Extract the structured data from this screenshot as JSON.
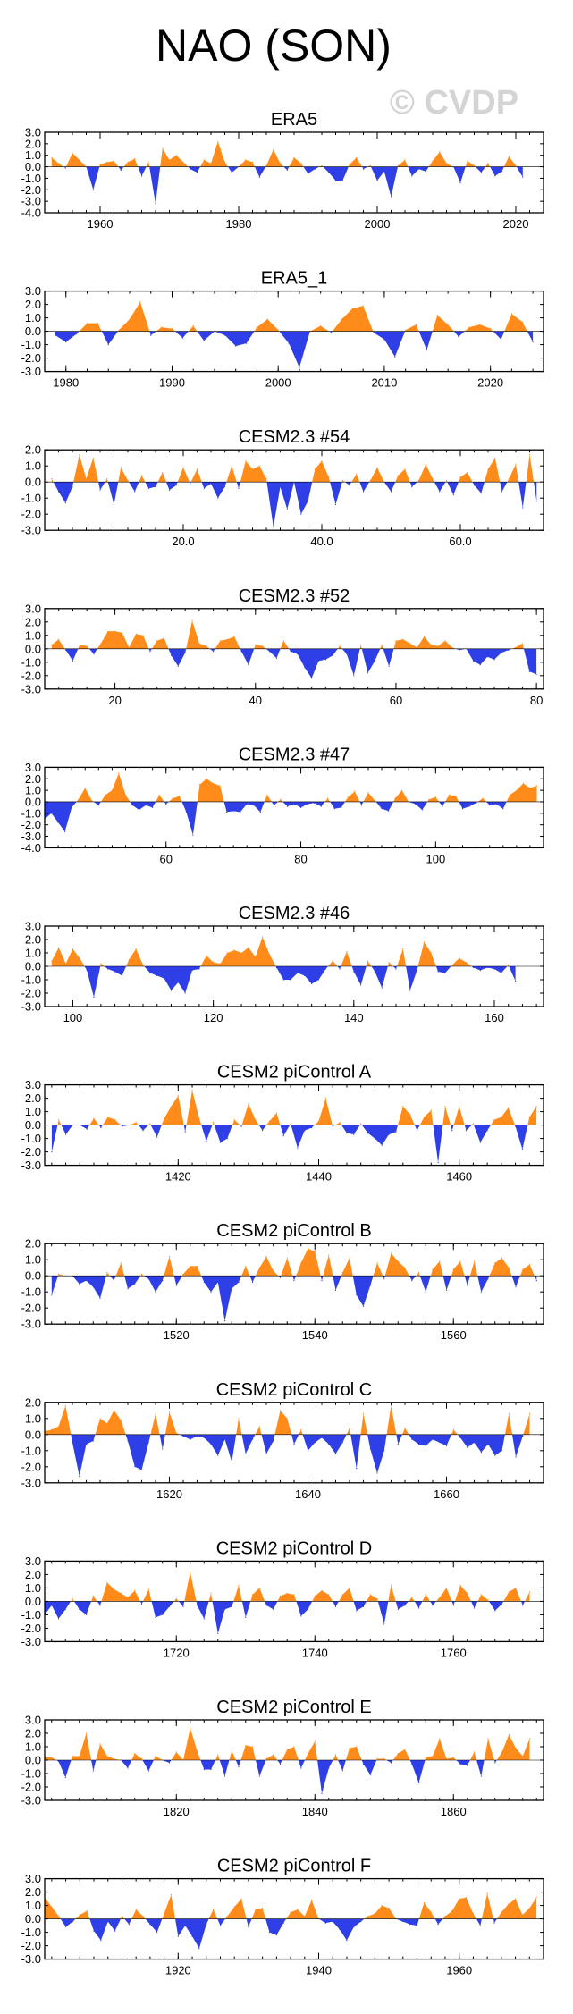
{
  "figure": {
    "title": "NAO (SON)",
    "watermark": "© CVDP"
  },
  "colors": {
    "positive": "#ff8c1a",
    "negative": "#2f3fe8"
  },
  "chart_data": [
    {
      "type": "area",
      "title": "ERA5",
      "xlim": [
        1952,
        2024
      ],
      "ylim": [
        -4.0,
        3.0
      ],
      "yticks": [
        3.0,
        2.0,
        1.0,
        0.0,
        -1.0,
        -2.0,
        -3.0,
        -4.0
      ],
      "ytick_labels": [
        "3.0",
        "2.0",
        "1.0",
        "0.0",
        "-1.0",
        "-2.0",
        "-3.0",
        "-4.0"
      ],
      "xticks": [
        1960,
        1980,
        2000,
        2020
      ],
      "xtick_labels": [
        "1960",
        "1980",
        "2000",
        "2020"
      ],
      "x_start": 1953,
      "values": [
        0.8,
        0.3,
        -0.1,
        1.2,
        0.6,
        0.0,
        -2.0,
        0.2,
        0.4,
        0.5,
        -0.3,
        0.4,
        0.7,
        -0.8,
        0.4,
        -3.2,
        1.6,
        0.6,
        1.0,
        0.4,
        -0.2,
        -0.5,
        0.6,
        0.3,
        2.2,
        0.4,
        -0.5,
        0.0,
        0.6,
        0.4,
        -0.9,
        0.1,
        1.5,
        0.3,
        -0.3,
        0.8,
        0.3,
        -0.6,
        -0.2,
        0.1,
        -0.5,
        -1.2,
        -1.2,
        0.2,
        0.8,
        -0.2,
        0.1,
        -1.2,
        -0.4,
        -2.6,
        0.1,
        0.6,
        -0.8,
        -0.2,
        -0.4,
        0.5,
        1.3,
        0.3,
        0.0,
        -1.4,
        0.5,
        0.1,
        -0.5,
        0.3,
        -0.8,
        -0.4,
        0.9,
        0.1,
        -0.9
      ]
    },
    {
      "type": "area",
      "title": "ERA5_1",
      "xlim": [
        1978,
        2025
      ],
      "ylim": [
        -3.0,
        3.0
      ],
      "yticks": [
        3.0,
        2.0,
        1.0,
        0.0,
        -1.0,
        -2.0,
        -3.0
      ],
      "ytick_labels": [
        "3.0",
        "2.0",
        "1.0",
        "0.0",
        "-1.0",
        "-2.0",
        "-3.0"
      ],
      "xticks": [
        1980,
        1990,
        2000,
        2010,
        2020
      ],
      "xtick_labels": [
        "1980",
        "1990",
        "2000",
        "2010",
        "2020"
      ],
      "x_start": 1979,
      "values": [
        -0.3,
        -0.8,
        -0.2,
        0.6,
        0.6,
        -1.0,
        0.1,
        0.9,
        2.2,
        -0.3,
        0.3,
        0.2,
        -0.5,
        0.4,
        -0.7,
        0.0,
        -0.3,
        -1.1,
        -0.9,
        0.3,
        0.9,
        0.1,
        -0.9,
        -2.7,
        0.0,
        0.4,
        -0.1,
        0.9,
        1.7,
        1.9,
        -0.1,
        -0.6,
        -1.9,
        0.1,
        0.5,
        -1.4,
        1.2,
        0.5,
        -0.4,
        0.3,
        0.5,
        0.2,
        -0.6,
        1.3,
        0.7,
        -0.8
      ]
    },
    {
      "type": "area",
      "title": "CESM2.3 #54",
      "xlim": [
        0,
        72
      ],
      "ylim": [
        -3.0,
        2.0
      ],
      "yticks": [
        2.0,
        1.0,
        0.0,
        -1.0,
        -2.0,
        -3.0
      ],
      "ytick_labels": [
        "2.0",
        "1.0",
        "0.0",
        "-1.0",
        "-2.0",
        "-3.0"
      ],
      "xticks": [
        20,
        40,
        60
      ],
      "xtick_labels": [
        "20.0",
        "40.0",
        "60.0"
      ],
      "x_start": 1,
      "values": [
        0.2,
        -0.6,
        -1.3,
        -0.3,
        1.7,
        0.2,
        1.5,
        -0.5,
        0.2,
        -1.4,
        0.9,
        0.1,
        -0.6,
        0.4,
        -0.4,
        -0.3,
        0.6,
        -0.5,
        -0.2,
        0.9,
        -0.1,
        0.8,
        -0.4,
        -0.1,
        -1.0,
        -0.3,
        1.0,
        -0.4,
        1.3,
        0.8,
        1.0,
        0.2,
        -2.8,
        -0.3,
        -1.7,
        0.0,
        -2.0,
        -1.2,
        0.8,
        1.3,
        0.3,
        -1.4,
        0.1,
        -0.2,
        0.5,
        -0.6,
        0.1,
        0.9,
        0.0,
        -0.6,
        0.4,
        0.8,
        -0.3,
        0.1,
        1.1,
        0.2,
        -0.6,
        0.1,
        -0.8,
        0.3,
        0.6,
        -0.2,
        -0.7,
        0.8,
        1.5,
        -0.6,
        0.2,
        1.1,
        -1.6,
        1.7,
        -1.2
      ]
    },
    {
      "type": "area",
      "title": "CESM2.3 #52",
      "xlim": [
        10,
        81
      ],
      "ylim": [
        -3.0,
        3.0
      ],
      "yticks": [
        3.0,
        2.0,
        1.0,
        0.0,
        -1.0,
        -2.0,
        -3.0
      ],
      "ytick_labels": [
        "3.0",
        "2.0",
        "1.0",
        "0.0",
        "-1.0",
        "-2.0",
        "-3.0"
      ],
      "xticks": [
        20,
        40,
        60,
        80
      ],
      "xtick_labels": [
        "20",
        "40",
        "60",
        "80"
      ],
      "x_start": 11,
      "values": [
        0.3,
        0.7,
        -0.1,
        -0.9,
        0.3,
        0.2,
        -0.4,
        0.4,
        1.3,
        1.3,
        1.2,
        0.1,
        1.1,
        1.0,
        -0.2,
        0.6,
        0.8,
        -0.5,
        -1.3,
        -0.3,
        2.1,
        0.4,
        0.2,
        -0.2,
        0.6,
        0.7,
        0.9,
        -0.2,
        -1.2,
        0.3,
        0.2,
        -0.2,
        -0.7,
        0.6,
        -0.2,
        -0.4,
        -1.4,
        -2.2,
        -0.9,
        -0.8,
        -0.5,
        0.2,
        -0.4,
        -2.0,
        0.3,
        -1.8,
        -0.9,
        0.3,
        -1.3,
        0.6,
        0.7,
        0.4,
        0.1,
        0.9,
        0.3,
        0.2,
        0.6,
        0.1,
        -0.1,
        0.0,
        -0.9,
        -1.2,
        -0.6,
        -0.8,
        -0.3,
        -0.1,
        0.1,
        0.4,
        -1.7,
        -1.9
      ]
    },
    {
      "type": "area",
      "title": "CESM2.3 #47",
      "xlim": [
        42,
        116
      ],
      "ylim": [
        -4.0,
        3.0
      ],
      "yticks": [
        3.0,
        2.0,
        1.0,
        0.0,
        -1.0,
        -2.0,
        -3.0,
        -4.0
      ],
      "ytick_labels": [
        "3.0",
        "2.0",
        "1.0",
        "0.0",
        "-1.0",
        "-2.0",
        "-3.0",
        "-4.0"
      ],
      "xticks": [
        60,
        80,
        100
      ],
      "xtick_labels": [
        "60",
        "80",
        "100"
      ],
      "x_start": 42,
      "values": [
        -1.5,
        -1.0,
        -1.8,
        -2.6,
        -0.5,
        0.2,
        1.2,
        0.1,
        -0.3,
        0.6,
        1.0,
        2.5,
        0.6,
        -0.3,
        -0.7,
        -0.3,
        -0.5,
        0.6,
        -0.2,
        0.3,
        0.5,
        -0.9,
        -2.9,
        1.5,
        2.0,
        1.6,
        1.4,
        -0.9,
        -0.8,
        -0.9,
        -0.2,
        -0.3,
        -0.9,
        0.6,
        -0.3,
        0.2,
        -0.4,
        -0.2,
        -0.5,
        -0.2,
        -0.1,
        -0.4,
        0.3,
        -0.6,
        -0.5,
        0.4,
        0.9,
        -0.3,
        0.8,
        0.1,
        -0.6,
        -0.8,
        0.3,
        1.0,
        0.0,
        -0.2,
        -0.7,
        0.2,
        0.4,
        -0.4,
        0.6,
        0.5,
        -0.6,
        -0.4,
        -0.1,
        0.3,
        -0.3,
        -0.2,
        -0.6,
        0.6,
        1.0,
        1.6,
        1.2,
        1.4
      ]
    },
    {
      "type": "area",
      "title": "CESM2.3 #46",
      "xlim": [
        96,
        167
      ],
      "ylim": [
        -3.0,
        3.0
      ],
      "yticks": [
        3.0,
        2.0,
        1.0,
        0.0,
        -1.0,
        -2.0,
        -3.0
      ],
      "ytick_labels": [
        "3.0",
        "2.0",
        "1.0",
        "0.0",
        "-1.0",
        "-2.0",
        "-3.0"
      ],
      "xticks": [
        100,
        120,
        140,
        160
      ],
      "xtick_labels": [
        "100",
        "120",
        "140",
        "160"
      ],
      "x_start": 97,
      "values": [
        0.4,
        1.4,
        0.2,
        1.3,
        0.6,
        -0.3,
        -2.3,
        0.2,
        -0.2,
        -0.4,
        -0.7,
        0.5,
        1.3,
        0.1,
        -0.5,
        -0.7,
        -0.9,
        -1.8,
        -1.2,
        -2.0,
        -0.3,
        -0.2,
        0.8,
        0.3,
        0.2,
        1.0,
        1.2,
        1.0,
        1.4,
        0.7,
        2.2,
        0.9,
        -0.1,
        -1.0,
        -1.0,
        -0.5,
        -0.7,
        -1.3,
        -1.0,
        -0.2,
        0.4,
        -0.2,
        1.1,
        -0.4,
        -1.4,
        0.4,
        -0.4,
        -1.6,
        0.3,
        -0.2,
        1.3,
        -1.8,
        -0.3,
        1.8,
        1.0,
        -0.4,
        -0.5,
        0.1,
        0.6,
        0.3,
        -0.1,
        -0.3,
        -0.1,
        -0.2,
        -0.5,
        0.1,
        -1.1
      ]
    },
    {
      "type": "area",
      "title": "CESM2 piControl A",
      "xlim": [
        1401,
        1472
      ],
      "ylim": [
        -3.0,
        3.0
      ],
      "yticks": [
        3.0,
        2.0,
        1.0,
        0.0,
        -1.0,
        -2.0,
        -3.0
      ],
      "ytick_labels": [
        "3.0",
        "2.0",
        "1.0",
        "0.0",
        "-1.0",
        "-2.0",
        "-3.0"
      ],
      "xticks": [
        1420,
        1440,
        1460
      ],
      "xtick_labels": [
        "1420",
        "1440",
        "1460"
      ],
      "x_start": 1402,
      "values": [
        -2.0,
        0.4,
        -0.7,
        0.0,
        0.0,
        -0.3,
        0.5,
        -0.2,
        0.6,
        0.4,
        -0.1,
        0.0,
        0.2,
        -0.4,
        0.1,
        -0.9,
        0.5,
        1.4,
        2.2,
        -0.5,
        2.6,
        0.5,
        -1.2,
        0.2,
        -1.3,
        -1.0,
        0.4,
        -0.1,
        1.6,
        0.4,
        -0.4,
        0.3,
        0.9,
        -0.8,
        0.1,
        -1.7,
        -0.4,
        -0.2,
        0.3,
        2.0,
        -0.1,
        0.2,
        -0.6,
        -0.7,
        0.1,
        -0.6,
        -1.0,
        -1.5,
        -0.7,
        -0.5,
        1.4,
        0.8,
        -0.4,
        0.6,
        1.1,
        -2.8,
        1.4,
        -0.4,
        1.4,
        -0.4,
        0.1,
        -1.3,
        -0.4,
        0.4,
        0.6,
        1.3,
        -0.1,
        -1.8,
        0.6,
        1.4
      ]
    },
    {
      "type": "area",
      "title": "CESM2 piControl B",
      "xlim": [
        1501,
        1573
      ],
      "ylim": [
        -3.0,
        2.0
      ],
      "yticks": [
        2.0,
        1.0,
        0.0,
        -1.0,
        -2.0,
        -3.0
      ],
      "ytick_labels": [
        "2.0",
        "1.0",
        "0.0",
        "-1.0",
        "-2.0",
        "-3.0"
      ],
      "xticks": [
        1520,
        1540,
        1560
      ],
      "xtick_labels": [
        "1520",
        "1540",
        "1560"
      ],
      "x_start": 1502,
      "values": [
        -1.2,
        0.1,
        0.0,
        0.0,
        -0.5,
        -0.3,
        -0.7,
        -1.4,
        0.2,
        -0.3,
        0.8,
        -0.8,
        -0.5,
        0.1,
        -0.2,
        -1.0,
        -0.3,
        1.2,
        -0.6,
        0.1,
        0.6,
        0.6,
        -0.4,
        -1.0,
        -0.4,
        -2.8,
        -0.8,
        -0.4,
        0.6,
        -0.4,
        0.5,
        1.2,
        0.3,
        -0.1,
        1.1,
        -0.3,
        0.8,
        1.7,
        1.5,
        -0.3,
        1.3,
        -0.9,
        0.2,
        1.1,
        -1.2,
        -1.9,
        -0.6,
        0.8,
        -0.2,
        1.4,
        0.9,
        0.5,
        -0.3,
        0.2,
        -1.0,
        0.4,
        0.9,
        -0.9,
        0.4,
        0.9,
        -0.6,
        0.9,
        -1.0,
        -0.2,
        0.8,
        1.1,
        0.5,
        -0.7,
        0.4,
        0.7,
        -0.3
      ]
    },
    {
      "type": "area",
      "title": "CESM2 piControl C",
      "xlim": [
        1602,
        1674
      ],
      "ylim": [
        -3.0,
        2.0
      ],
      "yticks": [
        2.0,
        1.0,
        0.0,
        -1.0,
        -2.0,
        -3.0
      ],
      "ytick_labels": [
        "2.0",
        "1.0",
        "0.0",
        "-1.0",
        "-2.0",
        "-3.0"
      ],
      "xticks": [
        1620,
        1640,
        1660
      ],
      "xtick_labels": [
        "1620",
        "1640",
        "1660"
      ],
      "x_start": 1602,
      "values": [
        0.2,
        0.3,
        0.5,
        1.8,
        -0.5,
        -2.6,
        -0.6,
        -0.4,
        1.0,
        0.7,
        1.5,
        0.9,
        -0.4,
        -2.0,
        -2.2,
        -0.5,
        1.3,
        -0.9,
        1.4,
        0.1,
        -0.1,
        -0.3,
        -0.1,
        -0.2,
        -0.6,
        -1.3,
        -0.3,
        -1.7,
        1.0,
        -1.2,
        -0.3,
        0.5,
        -1.2,
        -0.4,
        1.5,
        1.0,
        -0.6,
        0.3,
        -1.0,
        -0.5,
        -0.2,
        -0.6,
        -1.2,
        -0.5,
        0.4,
        -2.1,
        1.3,
        -0.9,
        -2.4,
        -1.0,
        1.8,
        -0.6,
        0.4,
        -0.3,
        -0.6,
        -0.7,
        -0.3,
        -0.5,
        -0.7,
        0.3,
        -0.2,
        -0.8,
        -0.5,
        -1.1,
        -0.6,
        -1.3,
        -1.0,
        1.3,
        -1.4,
        -0.1,
        1.3
      ]
    },
    {
      "type": "area",
      "title": "CESM2 piControl D",
      "xlim": [
        1701,
        1773
      ],
      "ylim": [
        -3.0,
        3.0
      ],
      "yticks": [
        3.0,
        2.0,
        1.0,
        0.0,
        -1.0,
        -2.0,
        -3.0
      ],
      "ytick_labels": [
        "3.0",
        "2.0",
        "1.0",
        "0.0",
        "-1.0",
        "-2.0",
        "-3.0"
      ],
      "xticks": [
        1720,
        1740,
        1760
      ],
      "xtick_labels": [
        "1720",
        "1740",
        "1760"
      ],
      "x_start": 1701,
      "values": [
        -1.0,
        -0.3,
        -1.3,
        -0.6,
        0.2,
        -0.6,
        -1.0,
        0.4,
        -0.3,
        1.4,
        0.9,
        0.6,
        0.3,
        0.8,
        -0.2,
        0.9,
        -1.2,
        -1.0,
        -0.4,
        0.2,
        -0.4,
        2.2,
        -0.3,
        -1.3,
        0.6,
        -2.4,
        -0.6,
        -0.4,
        1.2,
        -1.2,
        0.5,
        1.0,
        -0.3,
        -0.6,
        0.4,
        0.6,
        0.5,
        -1.1,
        -0.6,
        0.4,
        0.8,
        0.5,
        -0.4,
        0.5,
        1.0,
        -0.7,
        -0.4,
        0.5,
        0.2,
        -1.7,
        1.2,
        -0.6,
        -0.3,
        0.3,
        -0.5,
        0.5,
        -0.3,
        0.3,
        1.0,
        -0.3,
        1.2,
        0.6,
        -0.5,
        0.5,
        0.1,
        -0.7,
        -0.2,
        0.7,
        1.0,
        -0.3,
        0.7
      ]
    },
    {
      "type": "area",
      "title": "CESM2 piControl E",
      "xlim": [
        1801,
        1873
      ],
      "ylim": [
        -3.0,
        3.0
      ],
      "yticks": [
        3.0,
        2.0,
        1.0,
        0.0,
        -1.0,
        -2.0,
        -3.0
      ],
      "ytick_labels": [
        "3.0",
        "2.0",
        "1.0",
        "0.0",
        "-1.0",
        "-2.0",
        "-3.0"
      ],
      "xticks": [
        1820,
        1840,
        1860
      ],
      "xtick_labels": [
        "1820",
        "1840",
        "1860"
      ],
      "x_start": 1801,
      "values": [
        0.2,
        0.2,
        -0.1,
        -1.3,
        0.3,
        0.3,
        2.0,
        -0.8,
        1.2,
        0.3,
        0.1,
        0.0,
        -0.6,
        0.5,
        0.1,
        -0.8,
        0.3,
        0.0,
        -0.2,
        0.6,
        0.0,
        2.4,
        0.7,
        -0.7,
        -0.7,
        0.4,
        -1.2,
        0.7,
        -0.5,
        1.1,
        1.0,
        -1.2,
        0.1,
        0.4,
        -0.3,
        0.8,
        1.0,
        -0.6,
        0.5,
        1.4,
        -2.5,
        -0.6,
        0.4,
        -0.8,
        0.9,
        1.0,
        -0.3,
        -1.1,
        0.1,
        0.1,
        -0.2,
        0.5,
        0.8,
        -0.3,
        -1.7,
        0.2,
        0.3,
        1.6,
        0.1,
        0.2,
        -0.3,
        -0.4,
        0.6,
        -1.2,
        1.6,
        -0.2,
        0.6,
        1.9,
        0.9,
        0.3,
        1.6
      ]
    },
    {
      "type": "area",
      "title": "CESM2 piControl F",
      "xlim": [
        1901,
        1972
      ],
      "ylim": [
        -3.0,
        3.0
      ],
      "yticks": [
        3.0,
        2.0,
        1.0,
        0.0,
        -1.0,
        -2.0,
        -3.0
      ],
      "ytick_labels": [
        "3.0",
        "2.0",
        "1.0",
        "0.0",
        "-1.0",
        "-2.0",
        "-3.0"
      ],
      "xticks": [
        1920,
        1940,
        1960
      ],
      "xtick_labels": [
        "1920",
        "1940",
        "1960"
      ],
      "x_start": 1901,
      "values": [
        1.6,
        0.9,
        0.2,
        -0.6,
        -0.2,
        0.3,
        0.6,
        -0.9,
        -1.6,
        -0.2,
        -0.9,
        0.2,
        -0.4,
        0.7,
        0.2,
        -0.4,
        -1.0,
        0.4,
        1.8,
        -1.3,
        -0.5,
        -1.3,
        -2.2,
        -0.4,
        0.7,
        -0.5,
        0.2,
        0.9,
        1.5,
        -0.6,
        0.7,
        0.8,
        -1.0,
        -1.2,
        -0.3,
        0.5,
        0.7,
        0.2,
        1.4,
        0.0,
        -0.3,
        -0.2,
        -0.8,
        -1.6,
        -0.6,
        -0.2,
        0.2,
        0.4,
        1.0,
        0.8,
        0.0,
        -0.2,
        -0.4,
        -0.5,
        1.2,
        0.5,
        -0.4,
        0.2,
        0.6,
        1.5,
        1.6,
        0.4,
        -0.5,
        1.9,
        -0.3,
        0.5,
        1.1,
        1.5,
        0.3,
        0.8,
        1.6
      ]
    }
  ]
}
